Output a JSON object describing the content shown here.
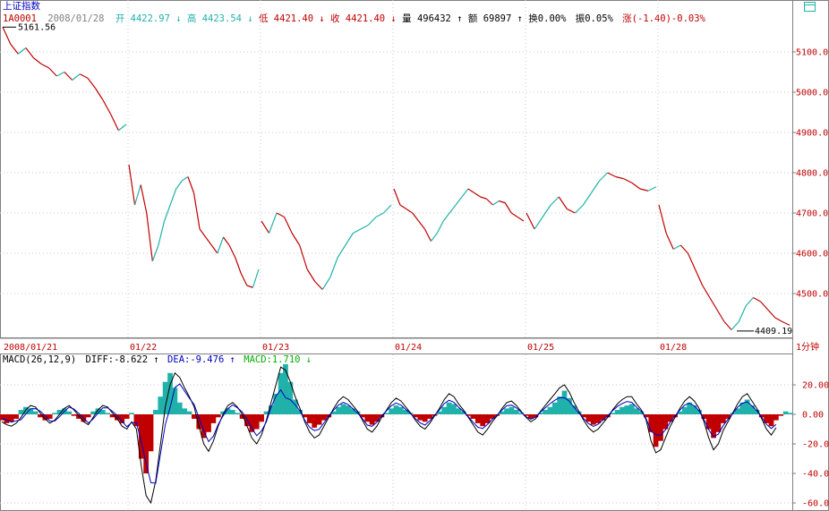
{
  "header": {
    "index_name": "上证指数",
    "code": "1A0001",
    "date": "2008/01/28",
    "open_label": "开",
    "open_value": "4422.97",
    "open_arrow": "↓",
    "high_label": "高",
    "high_value": "4423.54",
    "high_arrow": "↓",
    "low_label": "低",
    "low_value": "4421.40",
    "low_arrow": "↓",
    "close_label": "收",
    "close_value": "4421.40",
    "close_arrow": "↓",
    "volume_label": "量",
    "volume_value": "496432",
    "volume_arrow": "↑",
    "amount_label": "额",
    "amount_value": "69897",
    "amount_arrow": "↑",
    "turnover": "换0.00%",
    "amplitude": "振0.05%",
    "change": "涨(-1.40)-0.03%"
  },
  "colors": {
    "up": "#20b2aa",
    "down": "#c00000",
    "axis": "#808080",
    "grid": "#c8c8c8",
    "ylabel_text": "#c00000",
    "diff_line": "#000000",
    "dea_line": "#0000c0",
    "macd_label": "#00b000",
    "date_text": "#c00000"
  },
  "price_panel": {
    "high_annotation": "5161.56",
    "low_annotation": "4409.19",
    "period_label": "1分钟",
    "y_ticks": [
      "5100.0",
      "5000.0",
      "4900.0",
      "4800.0",
      "4700.0",
      "4600.0",
      "4500.0"
    ],
    "x_labels": [
      "2008/01/21",
      "01/22",
      "01/23",
      "01/24",
      "01/25",
      "01/28"
    ]
  },
  "macd_panel": {
    "title": "MACD(26,12,9)",
    "diff_label": "DIFF:-8.622",
    "diff_arrow": "↑",
    "dea_label": "DEA:-9.476",
    "dea_arrow": "↑",
    "macd_label": "MACD:1.710",
    "macd_arrow": "↓",
    "y_ticks": [
      "20.00",
      "0.00",
      "-20.00",
      "-40.00",
      "-60.00"
    ]
  },
  "chart_data": [
    {
      "type": "line",
      "title": "上证指数 1分钟",
      "x_labels": [
        "2008/01/21",
        "01/22",
        "01/23",
        "01/24",
        "01/25",
        "01/28"
      ],
      "ylim": [
        4400,
        5200
      ],
      "y_ticks": [
        4500,
        4600,
        4700,
        4800,
        4900,
        5000,
        5100
      ],
      "grid": true,
      "annotations": [
        {
          "label": "5161.56",
          "value": 5161.56
        },
        {
          "label": "4409.19",
          "value": 4409.19
        }
      ],
      "sessions": [
        {
          "date": "2008/01/21",
          "values": [
            5161.56,
            5120,
            5095,
            5110,
            5085,
            5070,
            5060,
            5040,
            5050,
            5030,
            5045,
            5035,
            5010,
            4980,
            4945,
            4905,
            4920
          ]
        },
        {
          "date": "01/22",
          "values": [
            4820,
            4720,
            4770,
            4700,
            4580,
            4620,
            4680,
            4720,
            4760,
            4780,
            4790,
            4750,
            4660,
            4640,
            4620,
            4600,
            4640,
            4620,
            4590,
            4550,
            4520,
            4515,
            4560
          ]
        },
        {
          "date": "01/23",
          "values": [
            4680,
            4650,
            4700,
            4690,
            4650,
            4620,
            4560,
            4530,
            4510,
            4540,
            4590,
            4620,
            4650,
            4660,
            4670,
            4690,
            4700,
            4720
          ]
        },
        {
          "date": "01/24",
          "values": [
            4760,
            4720,
            4710,
            4700,
            4680,
            4660,
            4630,
            4650,
            4680,
            4700,
            4720,
            4740,
            4760,
            4750,
            4740,
            4735,
            4720,
            4730,
            4725,
            4700,
            4690,
            4680
          ]
        },
        {
          "date": "01/25",
          "values": [
            4700,
            4660,
            4690,
            4720,
            4740,
            4710,
            4700,
            4720,
            4750,
            4780,
            4800,
            4790,
            4785,
            4775,
            4760,
            4755,
            4765
          ]
        },
        {
          "date": "01/28",
          "values": [
            4720,
            4650,
            4610,
            4620,
            4600,
            4560,
            4520,
            4490,
            4460,
            4430,
            4410,
            4430,
            4470,
            4490,
            4480,
            4460,
            4440,
            4430,
            4421.4
          ]
        }
      ]
    },
    {
      "type": "bar",
      "title": "MACD(26,12,9)",
      "ylim": [
        -62,
        32
      ],
      "y_ticks": [
        20,
        0,
        -20,
        -40,
        -60
      ],
      "series": [
        {
          "name": "MACD",
          "values": [
            -4,
            -6,
            -5,
            -3,
            3,
            5,
            4,
            2,
            -2,
            -4,
            -3,
            1,
            3,
            4,
            2,
            -1,
            -3,
            -5,
            -2,
            2,
            4,
            3,
            1,
            -2,
            -4,
            -6,
            -3,
            1,
            -8,
            -30,
            -40,
            -25,
            3,
            12,
            22,
            28,
            18,
            8,
            4,
            2,
            -3,
            -10,
            -16,
            -12,
            -6,
            -2,
            2,
            4,
            3,
            1,
            -3,
            -8,
            -12,
            -10,
            -5,
            2,
            6,
            14,
            28,
            34,
            22,
            10,
            3,
            -2,
            -6,
            -9,
            -7,
            -4,
            -2,
            2,
            5,
            7,
            6,
            4,
            2,
            -2,
            -5,
            -7,
            -5,
            -2,
            1,
            4,
            6,
            5,
            3,
            1,
            -2,
            -4,
            -5,
            -3,
            -1,
            2,
            5,
            8,
            7,
            4,
            2,
            -1,
            -3,
            -6,
            -8,
            -6,
            -3,
            -1,
            2,
            4,
            5,
            3,
            1,
            -1,
            -3,
            -2,
            1,
            3,
            5,
            8,
            12,
            16,
            11,
            6,
            2,
            -2,
            -5,
            -7,
            -6,
            -4,
            -2,
            1,
            3,
            5,
            6,
            7,
            4,
            2,
            -2,
            -12,
            -22,
            -18,
            -10,
            -5,
            -2,
            2,
            5,
            8,
            6,
            3,
            -3,
            -10,
            -16,
            -12,
            -6,
            -3,
            1,
            4,
            8,
            10,
            6,
            3,
            -2,
            -6,
            -8,
            -4,
            -1,
            2,
            1
          ]
        },
        {
          "name": "DIFF",
          "values": [
            -5,
            -7,
            -8,
            -6,
            -2,
            3,
            6,
            5,
            1,
            -3,
            -6,
            -4,
            0,
            4,
            6,
            3,
            -1,
            -5,
            -7,
            -2,
            3,
            6,
            5,
            1,
            -3,
            -8,
            -10,
            -5,
            -10,
            -35,
            -55,
            -60,
            -45,
            -20,
            5,
            20,
            28,
            25,
            18,
            12,
            5,
            -8,
            -20,
            -25,
            -18,
            -8,
            0,
            6,
            8,
            5,
            0,
            -8,
            -16,
            -20,
            -14,
            -4,
            8,
            20,
            32,
            30,
            22,
            12,
            4,
            -5,
            -12,
            -16,
            -14,
            -8,
            -2,
            4,
            9,
            12,
            10,
            6,
            2,
            -4,
            -10,
            -12,
            -8,
            -2,
            3,
            8,
            11,
            9,
            5,
            1,
            -4,
            -8,
            -10,
            -6,
            -1,
            4,
            10,
            14,
            12,
            7,
            3,
            -2,
            -7,
            -12,
            -14,
            -10,
            -5,
            -1,
            4,
            8,
            9,
            6,
            2,
            -2,
            -5,
            -3,
            2,
            6,
            10,
            14,
            18,
            20,
            15,
            8,
            2,
            -4,
            -9,
            -12,
            -10,
            -6,
            -2,
            3,
            7,
            10,
            12,
            12,
            7,
            3,
            -4,
            -18,
            -26,
            -24,
            -16,
            -8,
            -2,
            4,
            9,
            12,
            9,
            4,
            -5,
            -16,
            -24,
            -20,
            -11,
            -5,
            1,
            7,
            12,
            14,
            9,
            4,
            -3,
            -10,
            -14,
            -9
          ]
        }
      ]
    }
  ]
}
